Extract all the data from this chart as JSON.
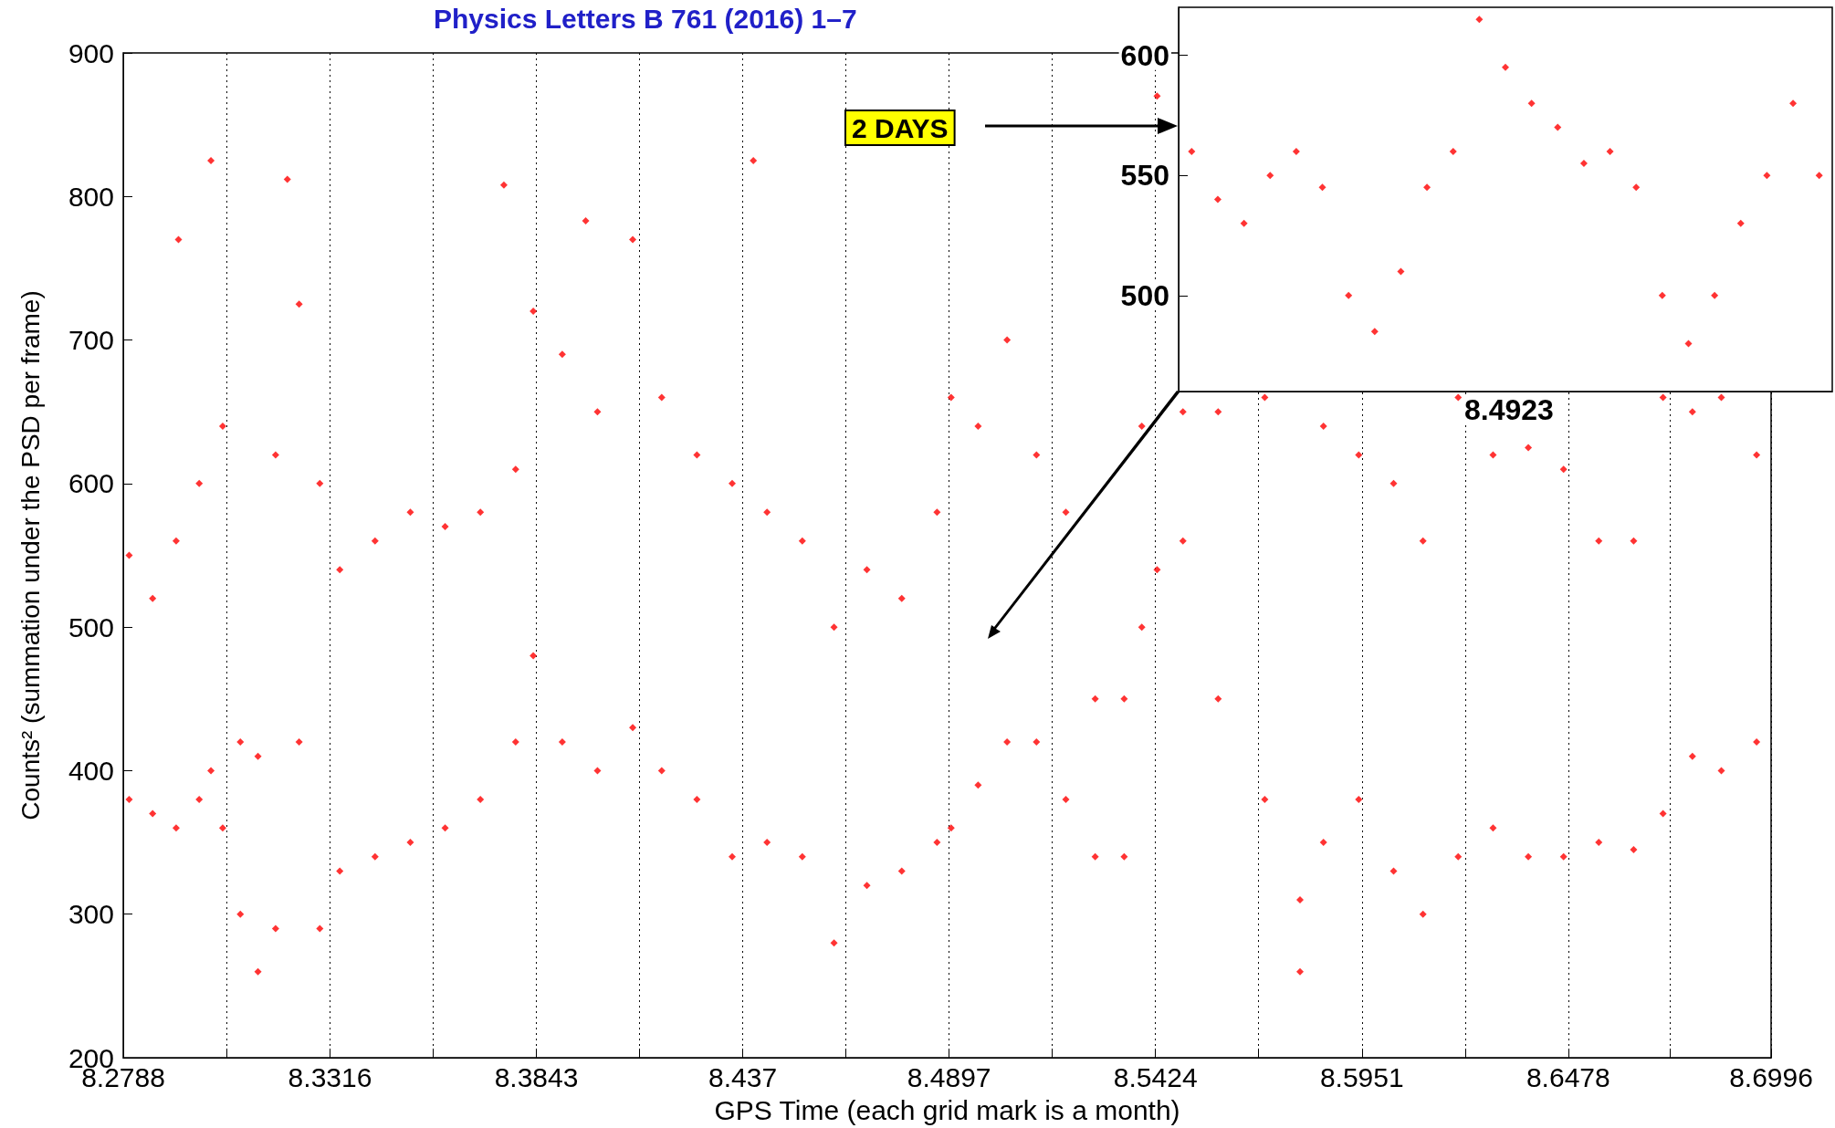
{
  "chart_data": [
    {
      "type": "scatter",
      "title": "Physics Letters B 761 (2016) 1–7",
      "xlabel": "GPS Time (each grid mark is a month)",
      "ylabel": "Counts² (summation under the PSD per frame)",
      "color": "#ff0000",
      "marker": "diamond",
      "grid": "x",
      "annotations": [
        "2 DAYS"
      ],
      "xlim": [
        8.2788,
        8.6996
      ],
      "ylim": [
        200,
        900
      ],
      "xticks": [
        8.2788,
        {
          "value": 8.3052,
          "label": null
        },
        8.3316,
        {
          "value": 8.35795,
          "label": null
        },
        8.3843,
        {
          "value": 8.41065,
          "label": null
        },
        8.437,
        {
          "value": 8.46335,
          "label": null
        },
        8.4897,
        {
          "value": 8.51605,
          "label": null
        },
        8.5424,
        {
          "value": 8.56875,
          "label": null
        },
        8.5951,
        {
          "value": 8.62145,
          "label": null
        },
        8.6478,
        {
          "value": 8.6737,
          "label": null
        },
        8.6996
      ],
      "yticks": [
        200,
        300,
        400,
        500,
        600,
        700,
        800,
        900
      ],
      "x": [
        8.2803,
        8.2803,
        8.2863,
        8.2863,
        8.2923,
        8.2923,
        8.2982,
        8.2982,
        8.3012,
        8.3012,
        8.3042,
        8.3042,
        8.3087,
        8.3087,
        8.3132,
        8.3132,
        8.3177,
        8.3177,
        8.3237,
        8.3237,
        8.329,
        8.329,
        8.3341,
        8.3341,
        8.3431,
        8.3431,
        8.3521,
        8.3521,
        8.361,
        8.361,
        8.37,
        8.37,
        8.379,
        8.379,
        8.3835,
        8.3835,
        8.3909,
        8.3909,
        8.3999,
        8.3999,
        8.4089,
        8.4089,
        8.4163,
        8.4163,
        8.4253,
        8.4253,
        8.4343,
        8.4343,
        8.4432,
        8.4432,
        8.4522,
        8.4522,
        8.4603,
        8.4603,
        8.4687,
        8.4687,
        8.4776,
        8.4776,
        8.4866,
        8.4866,
        8.4902,
        8.4902,
        8.4971,
        8.4971,
        8.5045,
        8.5045,
        8.512,
        8.512,
        8.5195,
        8.5195,
        8.527,
        8.527,
        8.5344,
        8.5344,
        8.5389,
        8.5389,
        8.5428,
        8.5428,
        8.5494,
        8.5494,
        8.5584,
        8.5584,
        8.5703,
        8.5703,
        8.5793,
        8.5793,
        8.5853,
        8.5853,
        8.5943,
        8.5943,
        8.6032,
        8.6032,
        8.6107,
        8.6107,
        8.6197,
        8.6197,
        8.6286,
        8.6286,
        8.6376,
        8.6376,
        8.6466,
        8.6466,
        8.6556,
        8.6556,
        8.6645,
        8.6645,
        8.672,
        8.672,
        8.6795,
        8.6795,
        8.6869,
        8.6869,
        8.6959,
        8.6959,
        8.3207,
        8.4397,
        8.376,
        8.3969,
        8.2929
      ],
      "values": [
        380,
        550,
        370,
        520,
        360,
        560,
        380,
        600,
        400,
        825,
        360,
        640,
        300,
        420,
        260,
        410,
        290,
        620,
        420,
        725,
        290,
        600,
        330,
        540,
        340,
        560,
        350,
        580,
        360,
        570,
        380,
        580,
        420,
        610,
        480,
        720,
        420,
        690,
        400,
        650,
        430,
        770,
        400,
        660,
        380,
        620,
        340,
        600,
        350,
        580,
        340,
        560,
        280,
        500,
        320,
        540,
        330,
        520,
        350,
        580,
        360,
        660,
        390,
        640,
        420,
        700,
        420,
        620,
        380,
        580,
        340,
        450,
        340,
        450,
        500,
        640,
        540,
        870,
        560,
        650,
        450,
        650,
        380,
        660,
        260,
        310,
        350,
        640,
        380,
        620,
        330,
        600,
        300,
        560,
        340,
        660,
        360,
        620,
        340,
        625,
        340,
        610,
        350,
        560,
        345,
        560,
        370,
        660,
        410,
        650,
        400,
        660,
        420,
        620,
        812,
        825,
        808,
        783,
        770
      ]
    },
    {
      "type": "scatter",
      "color": "#ff0000",
      "marker": "diamond",
      "tick_labels": "y",
      "annotations": [
        "8.4923"
      ],
      "categories": [
        null,
        null,
        null,
        null,
        null,
        null,
        null,
        null,
        null,
        null,
        null,
        null,
        null,
        null,
        null,
        null,
        null,
        null,
        null,
        null,
        null,
        null,
        null,
        null,
        null
      ],
      "ylim": [
        460,
        620
      ],
      "yticks": [
        500,
        550,
        600
      ],
      "values": [
        560,
        540,
        530,
        550,
        560,
        545,
        500,
        485,
        510,
        545,
        560,
        615,
        595,
        580,
        570,
        555,
        560,
        545,
        500,
        480,
        500,
        530,
        550,
        580,
        550
      ]
    }
  ]
}
